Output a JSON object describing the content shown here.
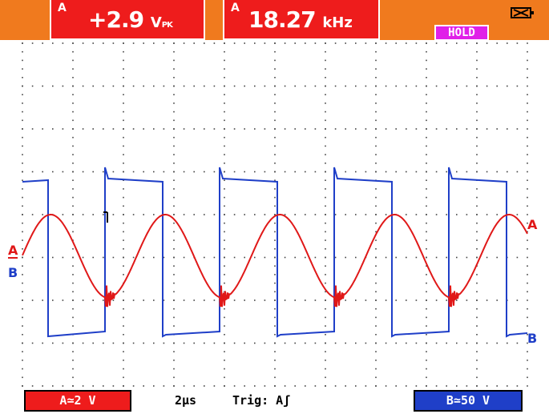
{
  "header": {
    "amplitude_readout": {
      "channel": "A",
      "value": "+2.9",
      "unit": "V",
      "unit_suffix": "PK"
    },
    "frequency_readout": {
      "channel": "A",
      "value": "18.27",
      "unit": "kHz"
    },
    "hold_badge": "HOLD",
    "battery_icon": "battery-icon"
  },
  "footer": {
    "channel_a_scale": "A≃2 V",
    "timebase": "2µs",
    "trigger": "Trig: Aʃ",
    "channel_b_scale": "B≃50 V"
  },
  "trace_labels": {
    "a_left": "A",
    "b_left": "B",
    "a_right": "A",
    "b_right": "B"
  },
  "colors": {
    "header_bar": "#f07a1e",
    "readout_bg": "#ee1c1c",
    "hold_bg": "#e020e8",
    "trace_a": "#e01818",
    "trace_b": "#1f3fc8",
    "grid_dots": "#444444"
  },
  "chart_data": {
    "type": "line",
    "title": "",
    "xlabel": "",
    "ylabel": "",
    "grid": true,
    "divisions": {
      "x": 10,
      "y": 8
    },
    "series": [
      {
        "name": "A",
        "shape": "sine",
        "cycles": 4.5,
        "amplitude_volts": 2.9,
        "frequency_khz": 18.27
      },
      {
        "name": "B",
        "shape": "square",
        "cycles": 4.5
      }
    ]
  }
}
